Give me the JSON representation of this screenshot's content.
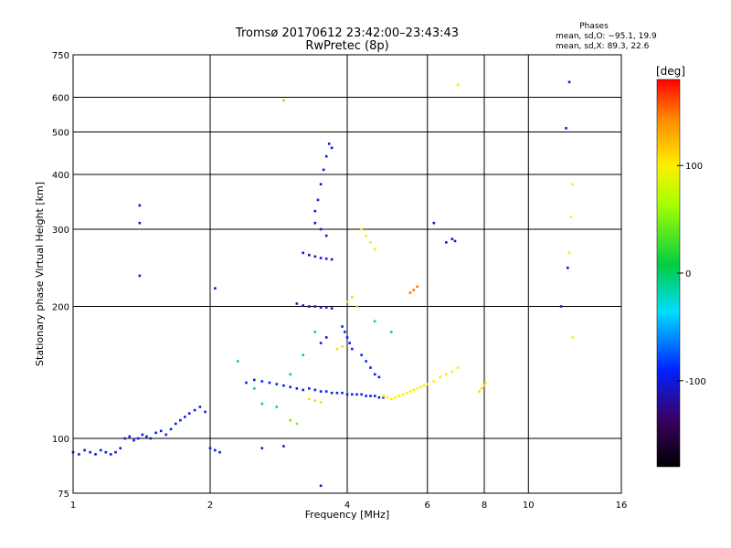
{
  "chart_data": {
    "type": "scatter",
    "title": "Tromsø 20170612 23:42:00–23:43:43",
    "subtitle": "RwPretec (8p)",
    "xlabel": "Frequency [MHz]",
    "ylabel": "Stationary phase Virtual Height [km]",
    "x_scale": "log2",
    "y_scale": "log",
    "xlim": [
      1,
      16
    ],
    "ylim": [
      75,
      750
    ],
    "x_ticks": [
      1,
      2,
      4,
      6,
      8,
      10,
      16
    ],
    "y_ticks": [
      75,
      100,
      200,
      300,
      400,
      500,
      600,
      750
    ],
    "grid": true,
    "annotation": {
      "title": "Phases",
      "line_o": "mean, sd,O: −95.1, 19.9",
      "line_x": "mean, sd,X:  89.3, 22.6"
    },
    "colorbar": {
      "label": "[deg]",
      "range": [
        -180,
        180
      ],
      "ticks": [
        100,
        0,
        -100
      ]
    },
    "series": [
      {
        "color_deg": -100,
        "x": [
          1.0,
          1.03,
          1.06,
          1.09,
          1.12,
          1.15,
          1.18,
          1.21,
          1.24,
          1.27,
          1.3,
          1.33,
          1.36,
          1.39,
          1.42,
          1.45,
          1.48,
          1.52,
          1.56,
          1.6,
          1.64,
          1.68,
          1.72,
          1.76,
          1.8,
          1.85,
          1.9,
          1.95,
          2.0,
          2.05,
          2.1
        ],
        "y": [
          93,
          92,
          94,
          93,
          92,
          94,
          93,
          92,
          93,
          95,
          100,
          101,
          99,
          100,
          102,
          101,
          100,
          103,
          104,
          102,
          105,
          108,
          110,
          112,
          114,
          116,
          118,
          115,
          95,
          94,
          93
        ]
      },
      {
        "color_deg": -95,
        "x": [
          2.4,
          2.5,
          2.6,
          2.7,
          2.8,
          2.9,
          3.0,
          3.1,
          3.2,
          3.3,
          3.4,
          3.5,
          3.6,
          3.7,
          3.8,
          3.9,
          4.0,
          4.1,
          4.2,
          4.3,
          4.4,
          4.5,
          4.6,
          4.7,
          4.8
        ],
        "y": [
          134,
          136,
          135,
          134,
          133,
          132,
          131,
          130,
          129,
          130,
          129,
          128,
          128,
          127,
          127,
          127,
          126,
          126,
          126,
          126,
          125,
          125,
          125,
          124,
          124
        ]
      },
      {
        "color_deg": -110,
        "x": [
          3.1,
          3.2,
          3.3,
          3.4,
          3.5,
          3.6,
          3.7
        ],
        "y": [
          203,
          201,
          200,
          200,
          199,
          199,
          198
        ]
      },
      {
        "color_deg": -105,
        "x": [
          3.2,
          3.3,
          3.4,
          3.5,
          3.6,
          3.7
        ],
        "y": [
          265,
          262,
          260,
          258,
          257,
          256
        ]
      },
      {
        "color_deg": -100,
        "x": [
          3.4,
          3.45,
          3.5,
          3.55,
          3.6,
          3.65,
          3.7,
          3.4,
          3.5,
          3.6,
          3.5,
          3.6
        ],
        "y": [
          330,
          350,
          380,
          410,
          440,
          470,
          460,
          310,
          300,
          290,
          165,
          170
        ]
      },
      {
        "color_deg": -90,
        "x": [
          3.9,
          3.95,
          4.0,
          4.05,
          4.1,
          4.3,
          4.4,
          4.5,
          4.6,
          4.7
        ],
        "y": [
          180,
          175,
          170,
          165,
          160,
          155,
          150,
          145,
          140,
          138
        ]
      },
      {
        "color_deg": 100,
        "x": [
          4.8,
          4.9,
          5.0,
          5.1,
          5.2,
          5.3,
          5.4,
          5.5,
          5.6,
          5.7,
          5.8,
          5.9,
          6.0,
          6.2,
          6.4,
          6.6,
          6.8,
          7.0
        ],
        "y": [
          125,
          124,
          123,
          124,
          125,
          126,
          127,
          128,
          129,
          130,
          131,
          132,
          133,
          135,
          138,
          140,
          142,
          145
        ]
      },
      {
        "color_deg": 110,
        "x": [
          7.8,
          7.9,
          8.0,
          8.05
        ],
        "y": [
          128,
          130,
          132,
          134
        ]
      },
      {
        "color_deg": 110,
        "x": [
          3.3,
          3.4,
          3.5,
          4.0,
          4.1,
          4.2,
          3.8,
          3.9
        ],
        "y": [
          123,
          122,
          121,
          205,
          210,
          200,
          160,
          162
        ]
      },
      {
        "color_deg": 150,
        "x": [
          5.6,
          5.7,
          5.5
        ],
        "y": [
          218,
          222,
          215
        ]
      },
      {
        "color_deg": 50,
        "x": [
          2.9,
          3.0,
          3.1
        ],
        "y": [
          590,
          110,
          108
        ]
      },
      {
        "color_deg": -10,
        "x": [
          2.3,
          2.5,
          2.6,
          2.8,
          3.0,
          3.2,
          3.4,
          4.6,
          5.0
        ],
        "y": [
          150,
          130,
          120,
          118,
          140,
          155,
          175,
          185,
          175
        ]
      },
      {
        "color_deg": -105,
        "x": [
          1.4,
          1.4,
          1.4,
          2.05,
          12.3,
          12.1,
          12.2,
          11.8,
          6.6,
          6.8,
          6.9,
          6.2,
          2.6,
          2.9,
          3.5
        ],
        "y": [
          340,
          310,
          235,
          220,
          650,
          510,
          245,
          200,
          280,
          285,
          282,
          310,
          95,
          96,
          78
        ]
      },
      {
        "color_deg": 100,
        "x": [
          12.5,
          12.4,
          12.3,
          12.5,
          7.0,
          4.3,
          4.4,
          4.5,
          4.6
        ],
        "y": [
          380,
          320,
          265,
          170,
          640,
          300,
          290,
          280,
          270
        ]
      }
    ]
  }
}
